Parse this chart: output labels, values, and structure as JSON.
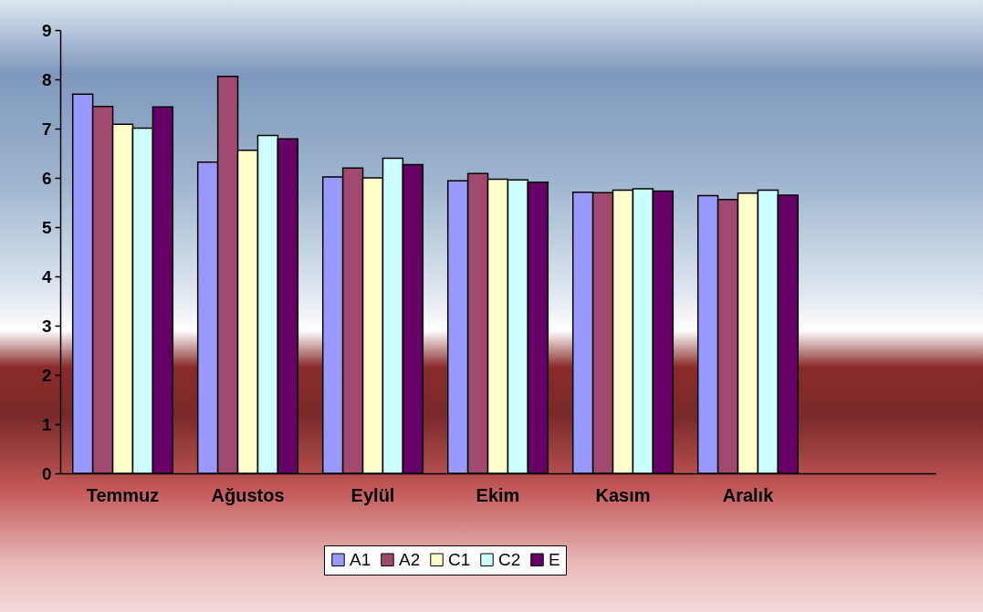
{
  "chart_data": {
    "type": "bar",
    "categories": [
      "Temmuz",
      "Ağustos",
      "Eylül",
      "Ekim",
      "Kasım",
      "Aralık",
      null
    ],
    "series": [
      {
        "name": "A1",
        "color": "#9999ff",
        "values": [
          7.7,
          6.32,
          6.02,
          5.94,
          5.71,
          5.64,
          null
        ]
      },
      {
        "name": "A2",
        "color": "#a04a70",
        "values": [
          7.45,
          8.06,
          6.2,
          6.09,
          5.7,
          5.56,
          null
        ]
      },
      {
        "name": "C1",
        "color": "#ffffcc",
        "values": [
          7.09,
          6.56,
          6.0,
          5.97,
          5.75,
          5.69,
          null
        ]
      },
      {
        "name": "C2",
        "color": "#ccffff",
        "values": [
          7.01,
          6.86,
          6.4,
          5.96,
          5.78,
          5.75,
          null
        ]
      },
      {
        "name": "E",
        "color": "#660066",
        "values": [
          7.44,
          6.79,
          6.27,
          5.91,
          5.73,
          5.65,
          null
        ]
      }
    ],
    "ylim": [
      0,
      9
    ],
    "yticks": [
      0,
      1,
      2,
      3,
      4,
      5,
      6,
      7,
      8,
      9
    ],
    "legend": "bottom"
  }
}
